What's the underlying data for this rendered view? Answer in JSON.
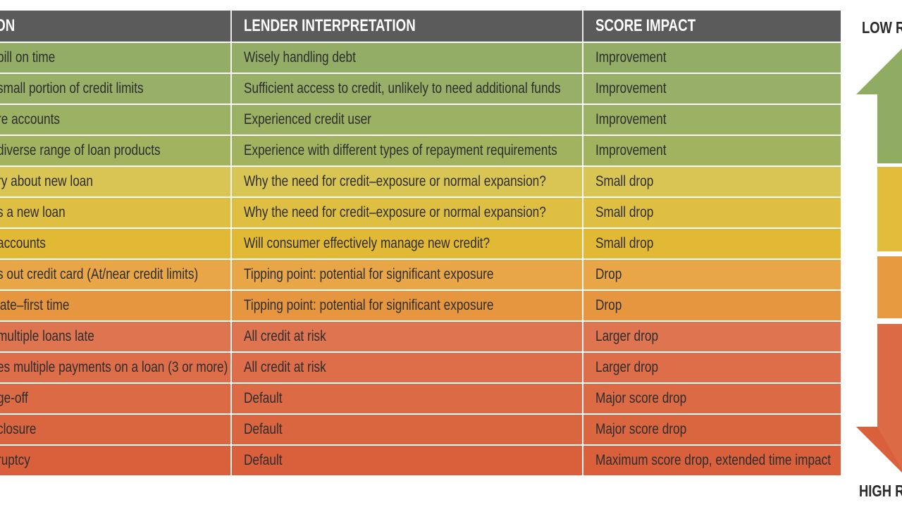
{
  "header": {
    "col1": "ION",
    "col2": "LENDER INTERPRETATION",
    "col3": "SCORE IMPACT"
  },
  "rows": [
    {
      "action": "bill on time",
      "interpretation": "Wisely handling debt",
      "impact": "Improvement",
      "color": "#93ad67"
    },
    {
      "action": "small portion of credit limits",
      "interpretation": "Sufficient access to credit, unlikely to need additional funds",
      "impact": "Improvement",
      "color": "#97af66"
    },
    {
      "action": "re accounts",
      "interpretation": "Experienced credit user",
      "impact": "Improvement",
      "color": "#9bb163"
    },
    {
      "action": "diverse range of loan products",
      "interpretation": "Experience with different types of repayment requirements",
      "impact": "Improvement",
      "color": "#a2b35f"
    },
    {
      "action": "ry about new loan",
      "interpretation": "Why the need for credit–exposure or normal expansion?",
      "impact": "Small drop",
      "color": "#d8c553"
    },
    {
      "action": "s a new loan",
      "interpretation": "Why the need for credit–exposure or normal expansion?",
      "impact": "Small drop",
      "color": "#dfbf42"
    },
    {
      "action": "accounts",
      "interpretation": "Will consumer effectively manage new credit?",
      "impact": "Small drop",
      "color": "#e2b935"
    },
    {
      "action": "s out credit card (At/near credit limits)",
      "interpretation": "Tipping point: potential for significant exposure",
      "impact": "Drop",
      "color": "#e8a647"
    },
    {
      "action": "late–first time",
      "interpretation": "Tipping point: potential for significant exposure",
      "impact": "Drop",
      "color": "#e6963f"
    },
    {
      "action": "multiple loans late",
      "interpretation": "All credit at risk",
      "impact": "Larger drop",
      "color": "#df7450"
    },
    {
      "action": "es multiple payments on a loan (3 or more)",
      "interpretation": "All credit at risk",
      "impact": "Larger drop",
      "color": "#de6e4a"
    },
    {
      "action": "ge-off",
      "interpretation": "Default",
      "impact": "Major score drop",
      "color": "#dc6a45"
    },
    {
      "action": "closure",
      "interpretation": "Default",
      "impact": "Major score drop",
      "color": "#da6640"
    },
    {
      "action": "ruptcy",
      "interpretation": "Default",
      "impact": "Maximum score drop, extended time impact",
      "color": "#d9603b"
    }
  ],
  "risk_scale": {
    "top_label": "LOW R",
    "bottom_label": "HIGH R",
    "colors": {
      "low": "#8fac62",
      "medium": "#e4bc3c",
      "elevated": "#e89a40",
      "high": "#db6a45"
    }
  }
}
